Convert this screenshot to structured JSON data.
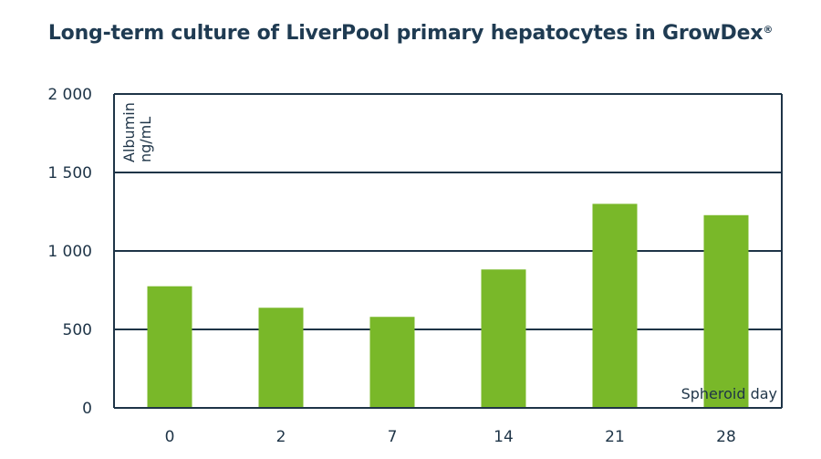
{
  "chart_data": {
    "type": "bar",
    "title_main": "Long-term culture of LiverPool primary hepatocytes in GrowDex",
    "title_mark": "®",
    "categories": [
      "0",
      "2",
      "7",
      "14",
      "21",
      "28"
    ],
    "values": [
      775,
      638,
      580,
      882,
      1300,
      1228
    ],
    "ylabel_line1": "Albumin",
    "ylabel_line2": "ng/mL",
    "xlabel": "Spheroid day",
    "ylim": [
      0,
      2000
    ],
    "yticks": [
      0,
      500,
      1000,
      1500,
      2000
    ],
    "ytick_labels": [
      "0",
      "500",
      "1 000",
      "1 500",
      "2 000"
    ],
    "grid": true,
    "bar_color": "#79b829",
    "axis_color": "#1e3447"
  }
}
